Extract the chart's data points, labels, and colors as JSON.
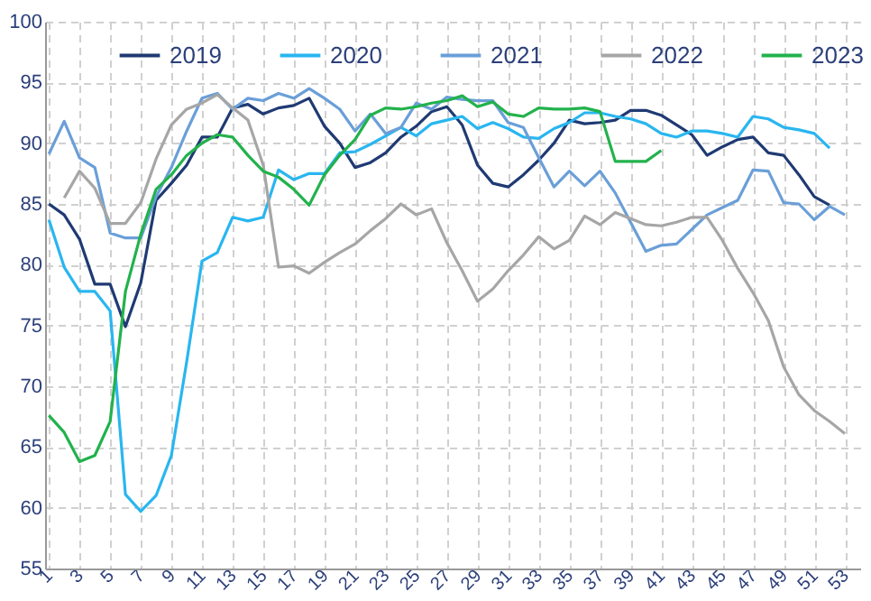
{
  "chart_data": {
    "type": "line",
    "x": [
      1,
      2,
      3,
      4,
      5,
      6,
      7,
      8,
      9,
      10,
      11,
      12,
      13,
      14,
      15,
      16,
      17,
      18,
      19,
      20,
      21,
      22,
      23,
      24,
      25,
      26,
      27,
      28,
      29,
      30,
      31,
      32,
      33,
      34,
      35,
      36,
      37,
      38,
      39,
      40,
      41,
      42,
      43,
      44,
      45,
      46,
      47,
      48,
      49,
      50,
      51,
      52,
      53
    ],
    "xlim": [
      0.75,
      54
    ],
    "xticks": [
      1,
      3,
      5,
      7,
      9,
      11,
      13,
      15,
      17,
      19,
      21,
      23,
      25,
      27,
      29,
      31,
      33,
      35,
      37,
      39,
      41,
      43,
      45,
      47,
      49,
      51,
      53
    ],
    "ylim": [
      55,
      100
    ],
    "yticks": [
      55,
      60,
      65,
      70,
      75,
      80,
      85,
      90,
      95,
      100
    ],
    "grid": true,
    "legend": "top",
    "line_style": "solid",
    "marker": "none",
    "series": [
      {
        "name": "2019",
        "color": "#1f3a73",
        "values": [
          85,
          84.1,
          82.1,
          78.4,
          78.4,
          74.9,
          78.5,
          85.3,
          86.7,
          88.2,
          90.5,
          90.5,
          92.9,
          93.2,
          92.4,
          92.9,
          93.1,
          93.7,
          91.4,
          90,
          88,
          88.4,
          89.2,
          90.5,
          91.4,
          92.6,
          93,
          91.5,
          88.2,
          86.7,
          86.4,
          87.4,
          88.6,
          90,
          91.9,
          91.6,
          91.7,
          91.9,
          92.7,
          92.7,
          92.3,
          91.5,
          90.7,
          89,
          89.7,
          90.3,
          90.5,
          89.2,
          89,
          87.4,
          85.6,
          84.9,
          null
        ]
      },
      {
        "name": "2020",
        "color": "#29b6f0",
        "values": [
          83.7,
          79.8,
          77.8,
          77.8,
          76.2,
          61.1,
          59.7,
          61,
          64.3,
          72,
          80.3,
          81,
          83.9,
          83.6,
          83.9,
          87.8,
          87,
          87.5,
          87.5,
          89.2,
          89.3,
          89.9,
          90.6,
          91.3,
          90.6,
          91.6,
          91.9,
          92.2,
          91.2,
          91.7,
          91.2,
          90.5,
          90.4,
          91.2,
          91.7,
          92.5,
          92.5,
          92.2,
          92,
          91.6,
          90.8,
          90.5,
          91,
          91,
          90.8,
          90.5,
          92.2,
          92,
          91.3,
          91.1,
          90.8,
          89.6,
          null
        ]
      },
      {
        "name": "2021",
        "color": "#6a9fd8",
        "values": [
          89.1,
          91.8,
          88.8,
          88,
          82.6,
          82.2,
          82.2,
          85.6,
          88,
          91,
          93.7,
          94.1,
          92.8,
          93.7,
          93.5,
          94.1,
          93.7,
          94.5,
          93.7,
          92.8,
          91,
          92.4,
          90.8,
          91.3,
          93.3,
          92.8,
          93.8,
          93.6,
          93.5,
          93.5,
          91.7,
          91.3,
          88.8,
          86.4,
          87.7,
          86.5,
          87.7,
          85.9,
          83.5,
          81.1,
          81.6,
          81.7,
          82.9,
          84.1,
          84.7,
          85.3,
          87.8,
          87.7,
          85.1,
          85,
          83.7,
          84.8,
          84.1
        ]
      },
      {
        "name": "2022",
        "color": "#a6a6a6",
        "values": [
          null,
          85.5,
          87.7,
          86.3,
          83.4,
          83.4,
          85.1,
          88.7,
          91.5,
          92.8,
          93.3,
          94,
          92.9,
          91.9,
          88.2,
          79.8,
          79.9,
          79.3,
          80.2,
          81,
          81.7,
          82.8,
          83.8,
          85,
          84.1,
          84.6,
          81.8,
          79.5,
          77,
          78,
          79.5,
          80.8,
          82.3,
          81.3,
          82,
          84,
          83.3,
          84.3,
          83.8,
          83.3,
          83.2,
          83.5,
          83.9,
          83.9,
          82,
          79.7,
          77.7,
          75.4,
          71.6,
          69.3,
          68,
          67.1,
          66.1
        ]
      },
      {
        "name": "2023",
        "color": "#22b24c",
        "values": [
          67.6,
          66.2,
          63.8,
          64.3,
          67.1,
          77.8,
          82.5,
          86.2,
          87.4,
          89,
          90,
          90.7,
          90.5,
          89,
          87.7,
          87.2,
          86.2,
          84.9,
          87.4,
          89,
          90.3,
          92.3,
          92.9,
          92.8,
          93,
          93.3,
          93.5,
          93.9,
          93,
          93.4,
          92.4,
          92.2,
          92.9,
          92.8,
          92.8,
          92.9,
          92.6,
          88.5,
          88.5,
          88.5,
          89.4,
          null,
          null,
          null,
          null,
          null,
          null,
          null,
          null,
          null,
          null,
          null,
          null
        ]
      }
    ]
  }
}
